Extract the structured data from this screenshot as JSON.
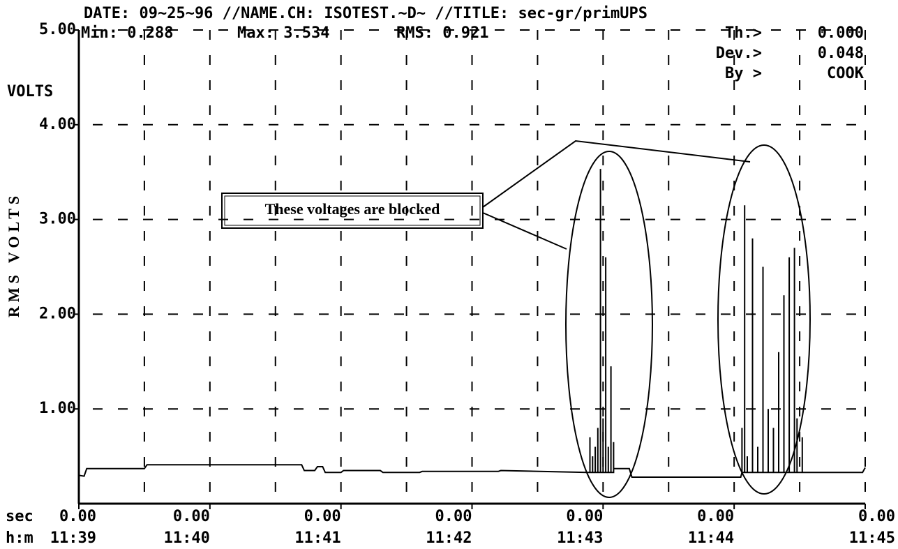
{
  "chart_data": {
    "type": "line",
    "title": "DATE: 09~25~96 //NAME.CH: ISOTEST.~D~ //TITLE: sec-gr/primUPS",
    "stats": [
      "Min: 0.288",
      "Max: 3.534",
      "RMS: 0.921"
    ],
    "settings": [
      {
        "label": "Th.>",
        "value": "0.000"
      },
      {
        "label": "Dev.>",
        "value": "0.048"
      },
      {
        "label": "By >",
        "value": "COOK"
      }
    ],
    "units": "VOLTS",
    "y_label": "RMS VOLTS",
    "x_sec_label": "sec",
    "x_time_label": "h:m",
    "annotation": "These voltages are blocked",
    "color": "#000000",
    "grid": true,
    "ylim": [
      0,
      5
    ],
    "yticks": [
      {
        "value": 1,
        "label": "1.00"
      },
      {
        "value": 2,
        "label": "2.00"
      },
      {
        "value": 3,
        "label": "3.00"
      },
      {
        "value": 4,
        "label": "4.00"
      },
      {
        "value": 5,
        "label": "5.00"
      }
    ],
    "xlim": [
      39,
      45
    ],
    "xticks": [
      {
        "value": 39,
        "label": "11:39"
      },
      {
        "value": 40,
        "label": "11:40"
      },
      {
        "value": 41,
        "label": "11:41"
      },
      {
        "value": 42,
        "label": "11:42"
      },
      {
        "value": 43,
        "label": "11:43"
      },
      {
        "value": 44,
        "label": "11:44"
      },
      {
        "value": 45,
        "label": "11:45"
      }
    ],
    "xtick_sec_labels": [
      "0.00",
      "0.00",
      "0.00",
      "0.00",
      "0.00",
      "0.00",
      "0.00"
    ],
    "xminor": [
      39.5,
      40.5,
      41.5,
      42.5,
      43.5,
      44.5
    ],
    "x": [
      39.0,
      39.04,
      39.06,
      39.5,
      39.52,
      40.7,
      40.72,
      40.8,
      40.82,
      40.86,
      40.88,
      41.0,
      41.02,
      41.3,
      41.32,
      41.6,
      41.62,
      42.2,
      42.22,
      42.88,
      42.9,
      42.9,
      42.9,
      42.92,
      42.92,
      42.92,
      42.94,
      42.94,
      42.94,
      42.96,
      42.96,
      42.96,
      42.98,
      42.98,
      42.98,
      43.0,
      43.0,
      43.0,
      43.02,
      43.02,
      43.02,
      43.04,
      43.04,
      43.04,
      43.06,
      43.06,
      43.06,
      43.08,
      43.08,
      43.08,
      43.1,
      43.2,
      43.22,
      44.05,
      44.06,
      44.06,
      44.06,
      44.08,
      44.08,
      44.08,
      44.1,
      44.1,
      44.1,
      44.14,
      44.14,
      44.14,
      44.18,
      44.18,
      44.18,
      44.22,
      44.22,
      44.22,
      44.26,
      44.26,
      44.26,
      44.3,
      44.3,
      44.3,
      44.34,
      44.34,
      44.34,
      44.38,
      44.38,
      44.38,
      44.42,
      44.42,
      44.42,
      44.46,
      44.46,
      44.46,
      44.48,
      44.48,
      44.48,
      44.52,
      44.52,
      44.52,
      44.55,
      44.98,
      45.0
    ],
    "values": [
      0.3,
      0.29,
      0.37,
      0.37,
      0.41,
      0.41,
      0.35,
      0.35,
      0.39,
      0.39,
      0.33,
      0.33,
      0.35,
      0.35,
      0.33,
      0.33,
      0.34,
      0.34,
      0.35,
      0.33,
      0.33,
      0.7,
      0.33,
      0.33,
      0.5,
      0.33,
      0.33,
      0.6,
      0.33,
      0.33,
      0.8,
      0.33,
      0.33,
      3.534,
      0.33,
      0.33,
      0.9,
      0.33,
      0.33,
      2.6,
      0.33,
      0.33,
      0.6,
      0.33,
      0.33,
      1.45,
      0.33,
      0.33,
      0.65,
      0.37,
      0.37,
      0.37,
      0.28,
      0.28,
      0.33,
      0.8,
      0.33,
      0.33,
      3.15,
      0.33,
      0.33,
      0.5,
      0.33,
      0.33,
      2.8,
      0.33,
      0.33,
      0.6,
      0.33,
      0.33,
      2.5,
      0.33,
      0.33,
      1.0,
      0.33,
      0.33,
      0.8,
      0.33,
      0.33,
      1.6,
      0.33,
      0.33,
      2.2,
      0.33,
      0.33,
      2.6,
      0.33,
      0.33,
      2.7,
      0.33,
      0.33,
      0.9,
      0.33,
      0.33,
      0.7,
      0.33,
      0.33,
      0.33,
      0.38
    ]
  }
}
